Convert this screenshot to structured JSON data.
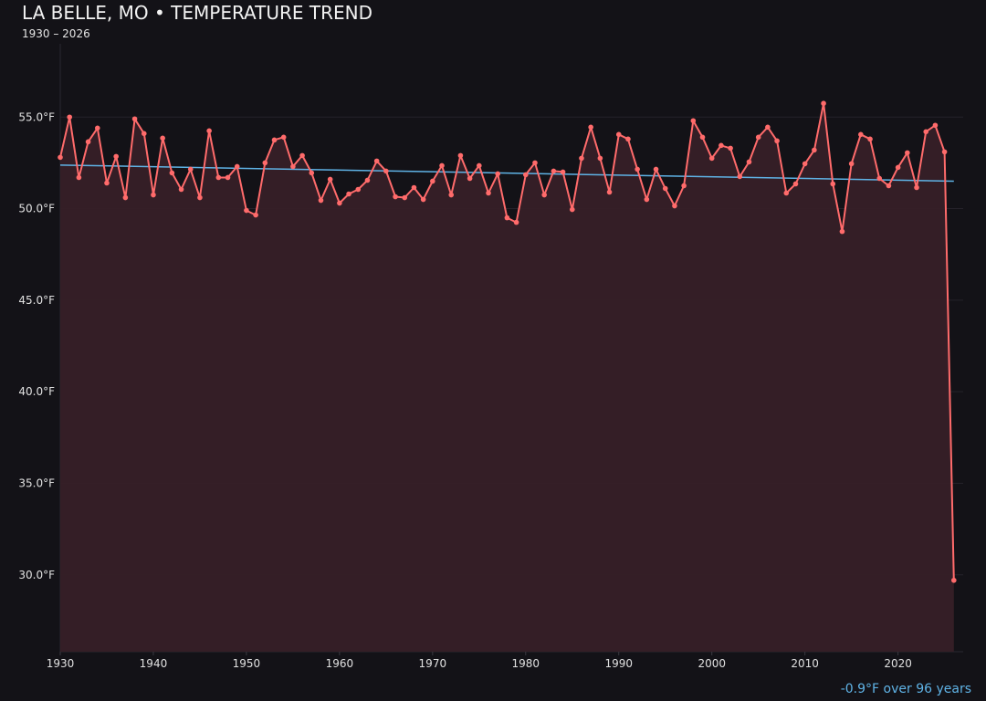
{
  "title": "LA BELLE, MO • TEMPERATURE TREND",
  "subtitle": "1930 – 2026",
  "footer": "-0.9°F over 96 years",
  "colors": {
    "background": "#131217",
    "line": "#ff6b6b",
    "fill": "#362027",
    "trend": "#5fb3e6"
  },
  "chart_data": {
    "type": "area",
    "title": "LA BELLE, MO • TEMPERATURE TREND",
    "subtitle": "1930 – 2026",
    "xlim": [
      1930,
      2027
    ],
    "ylim": [
      25.8,
      59.4
    ],
    "grid": true,
    "x_ticks": [
      1930,
      1940,
      1950,
      1960,
      1970,
      1980,
      1990,
      2000,
      2010,
      2020
    ],
    "x_tick_labels": [
      "1930",
      "1940",
      "1950",
      "1960",
      "1970",
      "1980",
      "1990",
      "2000",
      "2010",
      "2020"
    ],
    "y_ticks": [
      30,
      35,
      40,
      45,
      50,
      55
    ],
    "y_tick_labels": [
      "30.0°F",
      "35.0°F",
      "40.0°F",
      "45.0°F",
      "50.0°F",
      "55.0°F"
    ],
    "x_start": 1930,
    "values": [
      52.8,
      55.0,
      51.7,
      53.65,
      54.4,
      51.4,
      52.85,
      50.6,
      54.9,
      54.1,
      50.75,
      53.85,
      51.95,
      51.05,
      52.15,
      50.6,
      54.25,
      51.7,
      51.7,
      52.3,
      49.9,
      49.65,
      52.5,
      53.75,
      53.9,
      52.3,
      52.9,
      51.95,
      50.45,
      51.6,
      50.3,
      50.8,
      51.05,
      51.55,
      52.6,
      52.05,
      50.65,
      50.6,
      51.15,
      50.5,
      51.5,
      52.35,
      50.75,
      52.9,
      51.65,
      52.35,
      50.85,
      51.9,
      49.5,
      49.25,
      51.85,
      52.5,
      50.75,
      52.05,
      52.0,
      49.95,
      52.75,
      54.45,
      52.75,
      50.9,
      54.05,
      53.8,
      52.15,
      50.5,
      52.15,
      51.1,
      50.15,
      51.25,
      54.8,
      53.9,
      52.75,
      53.45,
      53.3,
      51.75,
      52.55,
      53.9,
      54.45,
      53.7,
      50.85,
      51.35,
      52.45,
      53.2,
      55.75,
      51.35,
      48.75,
      52.45,
      54.05,
      53.8,
      51.65,
      51.25,
      52.25,
      53.05,
      51.15,
      54.2,
      54.55,
      53.1,
      29.7
    ],
    "trend": {
      "start": [
        1930,
        52.38
      ],
      "end": [
        2026,
        51.5
      ]
    }
  }
}
